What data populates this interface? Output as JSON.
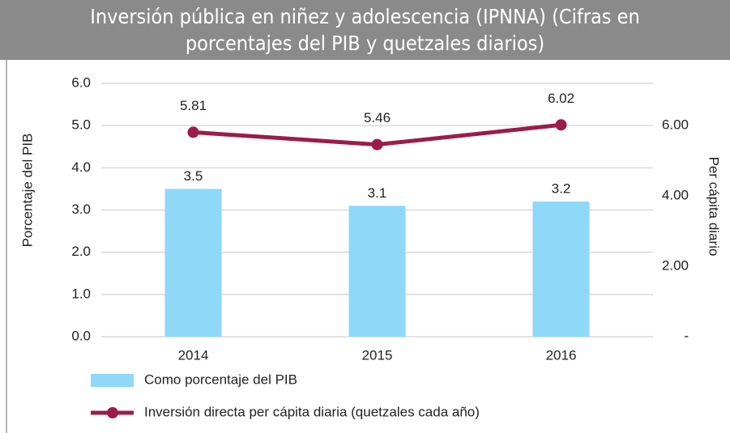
{
  "chart_data": {
    "type": "bar-line",
    "title": "Inversión pública en niñez y adolescencia (IPNNA) (Cifras en porcentajes del PIB y quetzales diarios)",
    "categories": [
      "2014",
      "2015",
      "2016"
    ],
    "ylabel": "Porcentaje del PIB",
    "y2label": "Per cápita diario",
    "ylim": [
      0,
      6
    ],
    "yticks": [
      {
        "value": 0,
        "label": "0.0"
      },
      {
        "value": 1,
        "label": "1.0"
      },
      {
        "value": 2,
        "label": "2.0"
      },
      {
        "value": 3,
        "label": "3.0"
      },
      {
        "value": 4,
        "label": "4.0"
      },
      {
        "value": 5,
        "label": "5.0"
      },
      {
        "value": 6,
        "label": "6.0"
      }
    ],
    "y2lim": [
      0,
      7.2
    ],
    "y2ticks": [
      {
        "value": 0,
        "label": "-"
      },
      {
        "value": 2,
        "label": "2.00"
      },
      {
        "value": 4,
        "label": "4.00"
      },
      {
        "value": 6,
        "label": "6.00"
      }
    ],
    "grid": true,
    "legend": "bottom-left",
    "series": [
      {
        "name": "Como porcentaje del PIB",
        "type": "bar",
        "color": "#8ed8f8",
        "values": [
          3.5,
          3.1,
          3.2
        ]
      },
      {
        "name": "Inversión directa per cápita diaria (quetzales cada año)",
        "type": "line",
        "axis": "y2",
        "color": "#9b1c4b",
        "values": [
          5.81,
          5.46,
          6.02
        ]
      }
    ]
  }
}
